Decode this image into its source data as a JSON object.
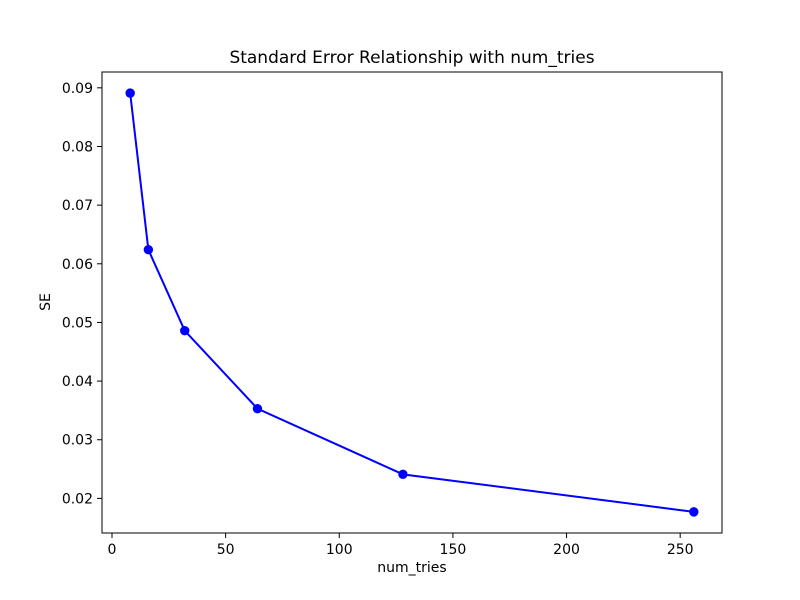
{
  "chart_data": {
    "type": "line",
    "title": "Standard Error Relationship with num_tries",
    "xlabel": "num_tries",
    "ylabel": "SE",
    "x": [
      8,
      16,
      32,
      64,
      128,
      256
    ],
    "series": [
      {
        "name": "SE",
        "values": [
          0.0891,
          0.0624,
          0.0486,
          0.0353,
          0.0241,
          0.0177
        ]
      }
    ],
    "xlim": [
      -4.4,
      268.4
    ],
    "ylim": [
      0.0141,
      0.0927
    ],
    "xticks": [
      0,
      50,
      100,
      150,
      200,
      250
    ],
    "xtick_labels": [
      "0",
      "50",
      "100",
      "150",
      "200",
      "250"
    ],
    "yticks": [
      0.02,
      0.03,
      0.04,
      0.05,
      0.06,
      0.07,
      0.08,
      0.09
    ],
    "ytick_labels": [
      "0.02",
      "0.03",
      "0.04",
      "0.05",
      "0.06",
      "0.07",
      "0.08",
      "0.09"
    ],
    "line_color": "#0000ff",
    "marker": "circle",
    "grid": false,
    "legend": "none",
    "background_color": "#ffffff",
    "spine_color": "#000000"
  }
}
